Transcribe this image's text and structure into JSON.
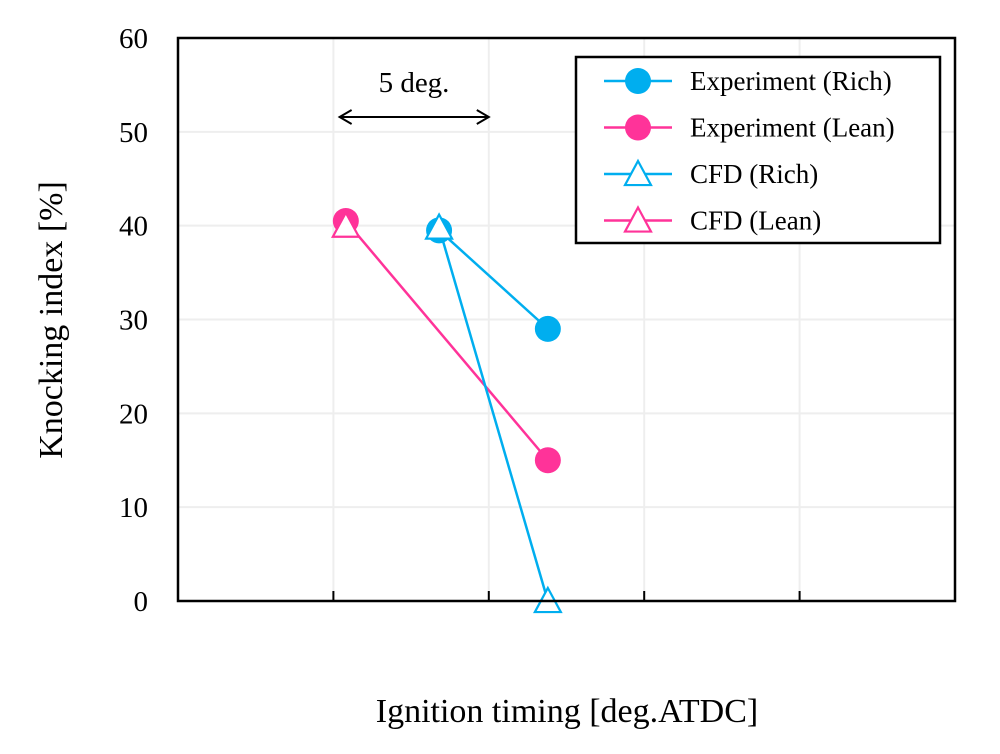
{
  "chart_data": {
    "type": "line",
    "title": "",
    "xlabel": "Ignition timing [deg.ATDC]",
    "ylabel": "Knocking index [%]",
    "xlim": [
      0,
      25
    ],
    "ylim": [
      0,
      60
    ],
    "x_gridlines": [
      5,
      10,
      15,
      20
    ],
    "y_ticks": [
      0,
      10,
      20,
      30,
      40,
      50,
      60
    ],
    "y_tick_labels": [
      "0",
      "10",
      "20",
      "30",
      "40",
      "50",
      "60"
    ],
    "x_tick_labels_shown": false,
    "grid": true,
    "legend_position": "top-right",
    "annotation": {
      "text": "5 deg.",
      "x_from": 5.2,
      "x_to": 10
    },
    "series": [
      {
        "name": "Experiment (Rich)",
        "marker": "filled-circle",
        "color": "#00AEEF",
        "x": [
          8.4,
          11.9
        ],
        "y": [
          39.5,
          29
        ]
      },
      {
        "name": "Experiment (Lean)",
        "marker": "filled-circle",
        "color": "#FF3399",
        "x": [
          5.4,
          11.9
        ],
        "y": [
          40.5,
          15
        ]
      },
      {
        "name": "CFD (Rich)",
        "marker": "open-triangle",
        "color": "#00AEEF",
        "x": [
          8.4,
          11.9
        ],
        "y": [
          39.8,
          0
        ]
      },
      {
        "name": "CFD (Lean)",
        "marker": "open-triangle",
        "color": "#FF3399",
        "x": [
          5.4
        ],
        "y": [
          40
        ]
      }
    ]
  }
}
